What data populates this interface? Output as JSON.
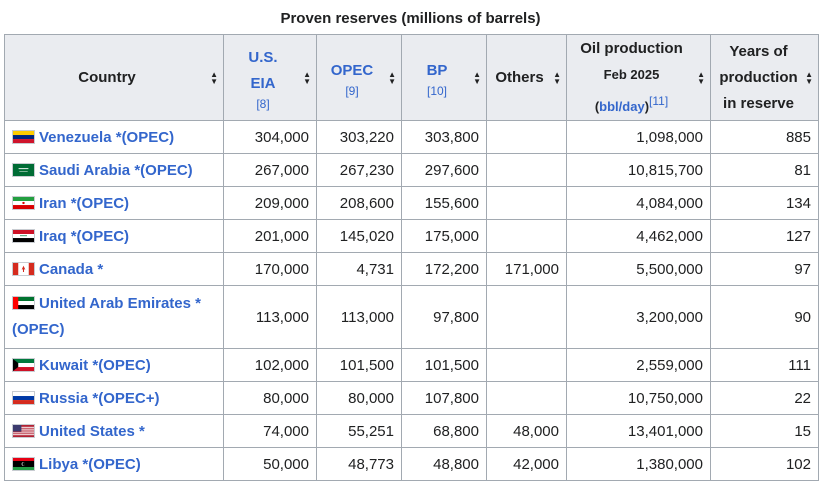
{
  "caption": "Proven reserves (millions of barrels)",
  "headers": {
    "country": "Country",
    "eia": "U.S. EIA",
    "eia_ref": "[8]",
    "opec": "OPEC",
    "opec_ref": "[9]",
    "bp": "BP",
    "bp_ref": "[10]",
    "others": "Others",
    "oilprod": "Oil production",
    "oilprod_date": "Feb 2025",
    "oilprod_unit": "bbl/day",
    "oilprod_ref": "[11]",
    "years": "Years of production in reserve"
  },
  "sort_icon": "sort-arrows-icon",
  "rows": [
    {
      "country": "Venezuela",
      "star": "*",
      "group": "(OPEC)",
      "flag": "venezuela-flag-icon",
      "eia": "304,000",
      "opec": "303,220",
      "bp": "303,800",
      "others": "",
      "production": "1,098,000",
      "years": "885"
    },
    {
      "country": "Saudi Arabia",
      "star": "*",
      "group": "(OPEC)",
      "flag": "saudi-arabia-flag-icon",
      "eia": "267,000",
      "opec": "267,230",
      "bp": "297,600",
      "others": "",
      "production": "10,815,700",
      "years": "81"
    },
    {
      "country": "Iran",
      "star": "*",
      "group": "(OPEC)",
      "flag": "iran-flag-icon",
      "eia": "209,000",
      "opec": "208,600",
      "bp": "155,600",
      "others": "",
      "production": "4,084,000",
      "years": "134"
    },
    {
      "country": "Iraq",
      "star": "*",
      "group": "(OPEC)",
      "flag": "iraq-flag-icon",
      "eia": "201,000",
      "opec": "145,020",
      "bp": "175,000",
      "others": "",
      "production": "4,462,000",
      "years": "127"
    },
    {
      "country": "Canada",
      "star": "*",
      "group": "",
      "flag": "canada-flag-icon",
      "eia": "170,000",
      "opec": "4,731",
      "bp": "172,200",
      "others": "171,000",
      "production": "5,500,000",
      "years": "97"
    },
    {
      "country": "United Arab Emirates",
      "star": "*",
      "group": "(OPEC)",
      "flag": "uae-flag-icon",
      "eia": "113,000",
      "opec": "113,000",
      "bp": "97,800",
      "others": "",
      "production": "3,200,000",
      "years": "90"
    },
    {
      "country": "Kuwait",
      "star": "*",
      "group": "(OPEC)",
      "flag": "kuwait-flag-icon",
      "eia": "102,000",
      "opec": "101,500",
      "bp": "101,500",
      "others": "",
      "production": "2,559,000",
      "years": "111"
    },
    {
      "country": "Russia",
      "star": "*",
      "group": "(OPEC+)",
      "flag": "russia-flag-icon",
      "eia": "80,000",
      "opec": "80,000",
      "bp": "107,800",
      "others": "",
      "production": "10,750,000",
      "years": "22"
    },
    {
      "country": "United States",
      "star": "*",
      "group": "",
      "flag": "united-states-flag-icon",
      "eia": "74,000",
      "opec": "55,251",
      "bp": "68,800",
      "others": "48,000",
      "production": "13,401,000",
      "years": "15"
    },
    {
      "country": "Libya",
      "star": "*",
      "group": "(OPEC)",
      "flag": "libya-flag-icon",
      "eia": "50,000",
      "opec": "48,773",
      "bp": "48,800",
      "others": "42,000",
      "production": "1,380,000",
      "years": "102"
    }
  ]
}
